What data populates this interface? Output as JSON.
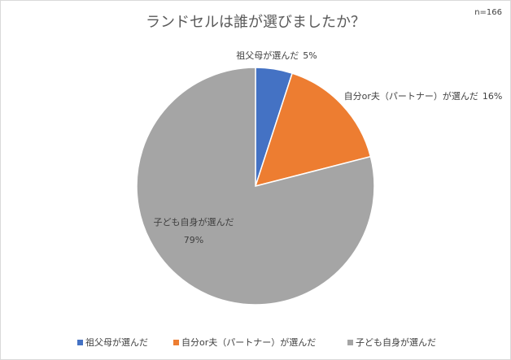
{
  "chart_data": {
    "type": "pie",
    "title": "ランドセルは誰が選びましたか？",
    "annotation": "n=166",
    "categories": [
      "祖父母が選んだ",
      "自分or夫（パートナー）が選んだ",
      "子ども自身が選んだ"
    ],
    "values": [
      5,
      16,
      79
    ],
    "value_labels": [
      "5%",
      "16%",
      "79%"
    ],
    "colors": [
      "#4472c4",
      "#ed7d31",
      "#a5a5a5"
    ],
    "legend": "bottom"
  }
}
